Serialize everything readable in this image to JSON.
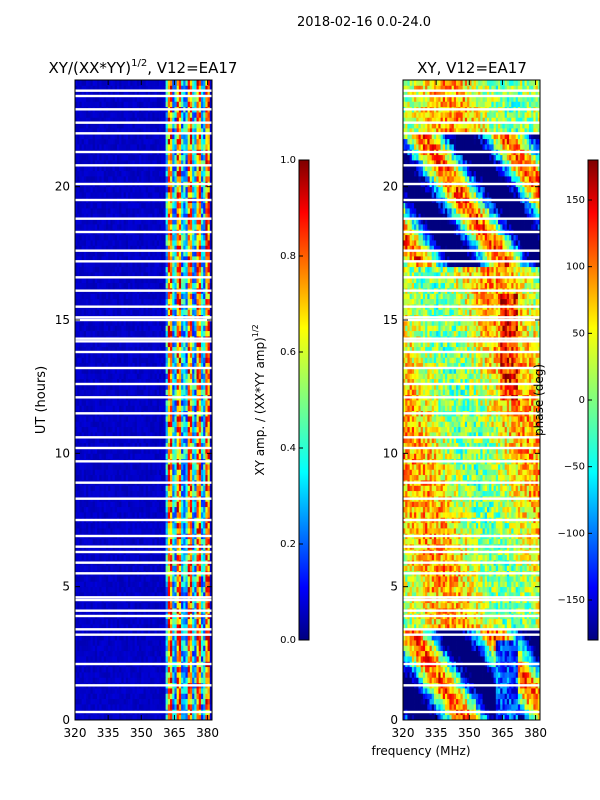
{
  "suptitle": "2018-02-16 0.0-24.0",
  "colors": {
    "jet": [
      "#00007f",
      "#0000ff",
      "#007fff",
      "#00ffff",
      "#7fff7f",
      "#ffff00",
      "#ff7f00",
      "#ff0000",
      "#7f0000"
    ],
    "axis": "#000000",
    "gap": "#ffffff"
  },
  "chart_data": [
    {
      "type": "heatmap",
      "title": "XY/(XX*YY)",
      "title_sup": "1/2",
      "title_suffix": ", V12=EA17",
      "xlabel": "",
      "ylabel": "UT (hours)",
      "xlim": [
        320,
        382
      ],
      "ylim": [
        0,
        24
      ],
      "xticks": [
        320,
        335,
        350,
        365,
        380
      ],
      "yticks": [
        0,
        5,
        10,
        15,
        20
      ],
      "colorbar": {
        "label": "XY amp. / (XX*YY amp)",
        "label_sup": "1/2",
        "range": [
          0.0,
          1.0
        ],
        "ticks": [
          "0.0",
          "0.2",
          "0.4",
          "0.6",
          "0.8",
          "1.0"
        ],
        "tick_values": [
          0.0,
          0.2,
          0.4,
          0.6,
          0.8,
          1.0
        ]
      },
      "quantity": "normalized cross-correlation amplitude",
      "background_value": 0.05,
      "active_band_MHz": [
        361,
        381
      ],
      "active_channels_MHz": [
        363,
        367,
        372,
        376,
        380
      ],
      "gap_times_hr": [
        0.3,
        1.3,
        2.1,
        3.2,
        3.4,
        3.9,
        4.1,
        4.5,
        4.6,
        5.5,
        5.9,
        6.3,
        6.5,
        6.9,
        7.5,
        8.3,
        8.9,
        9.7,
        10.2,
        10.6,
        11.5,
        12.1,
        12.6,
        13.2,
        13.8,
        14.2,
        14.3,
        15.0,
        15.1,
        15.5,
        16.1,
        16.6,
        17.2,
        17.6,
        18.3,
        18.8,
        19.5,
        20.1,
        20.8,
        21.3,
        22.0,
        22.4,
        22.9,
        23.4,
        23.6
      ]
    },
    {
      "type": "heatmap",
      "title": "XY, V12=EA17",
      "xlabel": "frequency (MHz)",
      "ylabel": "",
      "xlim": [
        320,
        382
      ],
      "ylim": [
        0,
        24
      ],
      "xticks": [
        320,
        335,
        350,
        365,
        380
      ],
      "yticks": [
        0,
        5,
        10,
        15,
        20
      ],
      "colorbar": {
        "label": "phase (deg)",
        "range": [
          -180,
          180
        ],
        "ticks": [
          "150",
          "100",
          "50",
          "0",
          "−50",
          "−100",
          "−150"
        ],
        "tick_values": [
          150,
          100,
          50,
          0,
          -50,
          -100,
          -150
        ]
      },
      "quantity": "cross-correlation phase",
      "gap_times_hr": [
        0.3,
        1.3,
        2.1,
        3.2,
        3.4,
        3.9,
        4.1,
        4.5,
        4.6,
        5.5,
        5.9,
        6.3,
        6.5,
        6.9,
        7.5,
        8.3,
        8.9,
        9.7,
        10.2,
        10.6,
        11.5,
        12.1,
        12.6,
        13.2,
        13.8,
        14.2,
        14.3,
        15.0,
        15.1,
        15.5,
        16.1,
        16.6,
        17.2,
        17.6,
        18.3,
        18.8,
        19.5,
        20.1,
        20.8,
        21.3,
        22.0,
        22.4,
        22.9,
        23.4,
        23.6
      ]
    }
  ]
}
